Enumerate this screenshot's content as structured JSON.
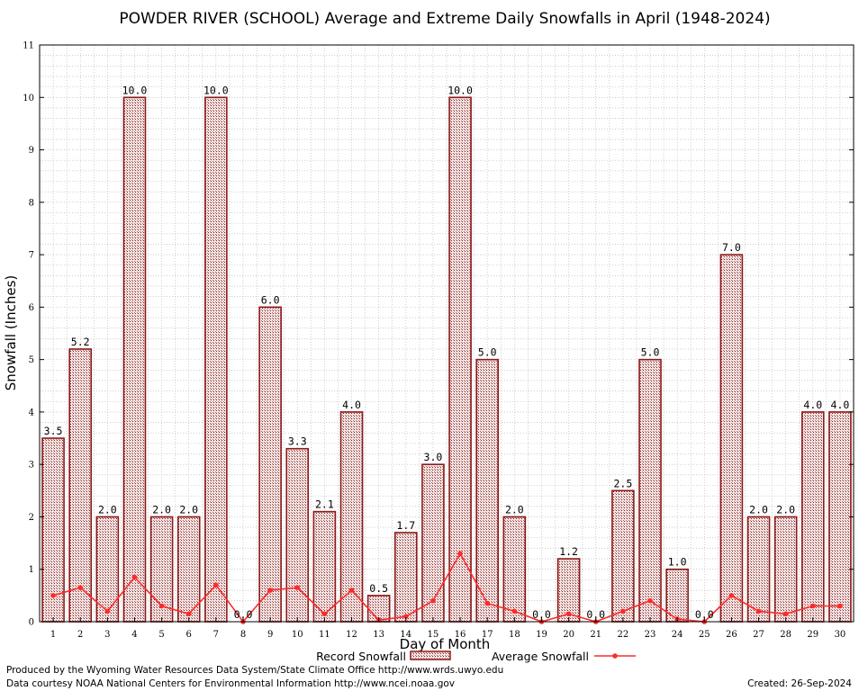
{
  "title": "POWDER RIVER (SCHOOL) Average and Extreme Daily Snowfalls in April (1948-2024)",
  "chart_data": {
    "type": "bar",
    "title": "POWDER RIVER (SCHOOL) Average and Extreme Daily Snowfalls in April (1948-2024)",
    "xlabel": "Day of Month",
    "ylabel": "Snowfall (Inches)",
    "ylim": [
      0,
      11
    ],
    "yticks": [
      "0",
      "1",
      "2",
      "3",
      "4",
      "5",
      "6",
      "7",
      "8",
      "9",
      "10",
      "11"
    ],
    "grid": true,
    "legend_position": "bottom",
    "categories": [
      "1",
      "2",
      "3",
      "4",
      "5",
      "6",
      "7",
      "8",
      "9",
      "10",
      "11",
      "12",
      "13",
      "14",
      "15",
      "16",
      "17",
      "18",
      "19",
      "20",
      "21",
      "22",
      "23",
      "24",
      "25",
      "26",
      "27",
      "28",
      "29",
      "30"
    ],
    "series": [
      {
        "name": "Record Snowfall",
        "type": "bar",
        "color": "#8b1a1a",
        "values": [
          3.5,
          5.2,
          2.0,
          10.0,
          2.0,
          2.0,
          10.0,
          0.0,
          6.0,
          3.3,
          2.1,
          4.0,
          0.5,
          1.7,
          3.0,
          10.0,
          5.0,
          2.0,
          0.0,
          1.2,
          0.0,
          2.5,
          5.0,
          1.0,
          0.0,
          7.0,
          2.0,
          2.0,
          4.0,
          4.0
        ],
        "labels": [
          "3.5",
          "5.2",
          "2.0",
          "10.0",
          "2.0",
          "2.0",
          "10.0",
          "0.0",
          "6.0",
          "3.3",
          "2.1",
          "4.0",
          "0.5",
          "1.7",
          "3.0",
          "10.0",
          "5.0",
          "2.0",
          "0.0",
          "1.2",
          "0.0",
          "2.5",
          "5.0",
          "1.0",
          "0.0",
          "7.0",
          "2.0",
          "2.0",
          "4.0",
          "4.0"
        ]
      },
      {
        "name": "Average Snowfall",
        "type": "line",
        "color": "#ff2a2a",
        "values": [
          0.5,
          0.65,
          0.2,
          0.85,
          0.3,
          0.15,
          0.7,
          0.0,
          0.6,
          0.65,
          0.15,
          0.6,
          0.03,
          0.1,
          0.4,
          1.3,
          0.35,
          0.2,
          0.0,
          0.15,
          0.0,
          0.2,
          0.4,
          0.05,
          0.0,
          0.5,
          0.2,
          0.15,
          0.3,
          0.3
        ]
      }
    ]
  },
  "footer": {
    "line1": "Produced by the Wyoming Water Resources Data System/State Climate Office http://www.wrds.uwyo.edu",
    "line2": "Data courtesy NOAA National Centers for Environmental Information http://www.ncei.noaa.gov",
    "created": "Created:  26-Sep-2024"
  }
}
